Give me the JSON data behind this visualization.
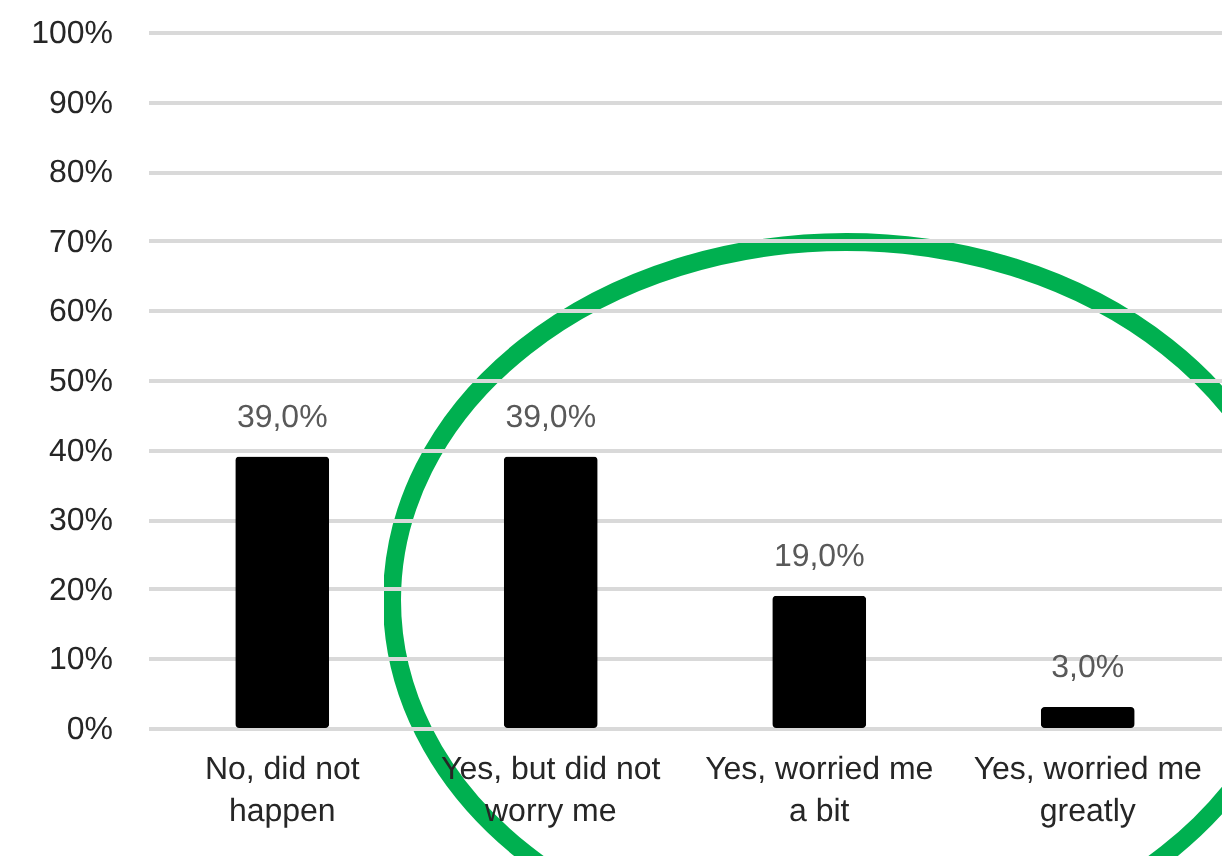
{
  "chart_data": {
    "type": "bar",
    "categories": [
      "No, did not happen",
      "Yes, but did not worry me",
      "Yes, worried me a bit",
      "Yes, worried me greatly"
    ],
    "values": [
      39,
      39,
      19,
      3
    ],
    "color": "#000000",
    "value_labels": [
      "39,0%",
      "39,0%",
      "19,0%",
      "3,0%"
    ],
    "ylim": [
      0,
      100
    ],
    "yticks": [
      {
        "value": 0,
        "label": "0%"
      },
      {
        "value": 10,
        "label": "10%"
      },
      {
        "value": 20,
        "label": "20%"
      },
      {
        "value": 30,
        "label": "30%"
      },
      {
        "value": 40,
        "label": "40%"
      },
      {
        "value": 50,
        "label": "50%"
      },
      {
        "value": 60,
        "label": "60%"
      },
      {
        "value": 70,
        "label": "70%"
      },
      {
        "value": 80,
        "label": "80%"
      },
      {
        "value": 90,
        "label": "90%"
      },
      {
        "value": 100,
        "label": "100%"
      }
    ],
    "grid": "y"
  }
}
